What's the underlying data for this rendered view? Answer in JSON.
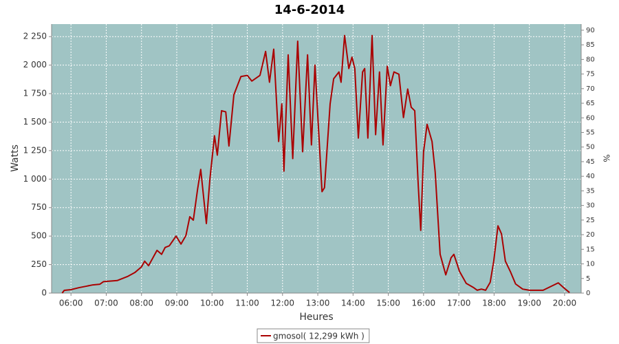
{
  "chart_data": {
    "type": "line",
    "title": "14-6-2014",
    "x_label": "Heures",
    "y_label": "Watts",
    "y2_label": "%",
    "x": [
      5.75,
      5.81,
      6.0,
      6.23,
      6.43,
      6.62,
      6.82,
      6.92,
      7.31,
      7.6,
      7.81,
      8.0,
      8.09,
      8.2,
      8.44,
      8.57,
      8.67,
      8.79,
      8.98,
      9.12,
      9.26,
      9.37,
      9.47,
      9.59,
      9.68,
      9.84,
      9.94,
      10.07,
      10.15,
      10.27,
      10.39,
      10.48,
      10.62,
      10.82,
      11.0,
      11.13,
      11.36,
      11.52,
      11.63,
      11.75,
      11.89,
      11.98,
      12.04,
      12.16,
      12.29,
      12.43,
      12.57,
      12.71,
      12.82,
      12.92,
      13.12,
      13.19,
      13.35,
      13.45,
      13.6,
      13.66,
      13.76,
      13.88,
      13.97,
      14.05,
      14.15,
      14.27,
      14.33,
      14.42,
      14.54,
      14.64,
      14.75,
      14.85,
      14.97,
      15.06,
      15.16,
      15.3,
      15.43,
      15.55,
      15.65,
      15.75,
      15.85,
      15.92,
      16.0,
      16.1,
      16.24,
      16.33,
      16.47,
      16.63,
      16.78,
      16.86,
      17.02,
      17.21,
      17.41,
      17.52,
      17.64,
      17.76,
      17.89,
      17.99,
      18.11,
      18.21,
      18.32,
      18.46,
      18.61,
      18.81,
      19.0,
      19.39,
      19.59,
      19.82,
      20.02,
      20.14
    ],
    "series": [
      {
        "name": "gmosol( 12,299 kWh )",
        "color": "#aa0000",
        "values": [
          0,
          24,
          30,
          48,
          60,
          72,
          78,
          100,
          110,
          145,
          180,
          230,
          280,
          240,
          375,
          340,
          400,
          415,
          500,
          430,
          505,
          670,
          640,
          910,
          1085,
          610,
          1000,
          1380,
          1210,
          1600,
          1590,
          1290,
          1740,
          1900,
          1910,
          1860,
          1910,
          2120,
          1850,
          2140,
          1330,
          1660,
          1070,
          2090,
          1180,
          2210,
          1240,
          2090,
          1300,
          2000,
          890,
          925,
          1660,
          1880,
          1940,
          1850,
          2260,
          1970,
          2070,
          1970,
          1360,
          1940,
          1970,
          1360,
          2260,
          1390,
          1940,
          1300,
          1990,
          1820,
          1940,
          1920,
          1540,
          1790,
          1630,
          1600,
          940,
          550,
          1240,
          1480,
          1330,
          1060,
          340,
          160,
          310,
          340,
          190,
          85,
          50,
          25,
          35,
          25,
          95,
          280,
          590,
          520,
          280,
          190,
          80,
          35,
          25,
          25,
          55,
          90,
          35,
          5
        ]
      }
    ],
    "xlim": [
      5.45,
      20.47
    ],
    "xticks": [
      {
        "value": 6,
        "label": "06:00"
      },
      {
        "value": 7,
        "label": "07:00"
      },
      {
        "value": 8,
        "label": "08:00"
      },
      {
        "value": 9,
        "label": "09:00"
      },
      {
        "value": 10,
        "label": "10:00"
      },
      {
        "value": 11,
        "label": "11:00"
      },
      {
        "value": 12,
        "label": "12:00"
      },
      {
        "value": 13,
        "label": "13:00"
      },
      {
        "value": 14,
        "label": "14:00"
      },
      {
        "value": 15,
        "label": "15:00"
      },
      {
        "value": 16,
        "label": "16:00"
      },
      {
        "value": 17,
        "label": "17:00"
      },
      {
        "value": 18,
        "label": "18:00"
      },
      {
        "value": 19,
        "label": "19:00"
      },
      {
        "value": 20,
        "label": "20:00"
      }
    ],
    "ylim": [
      0,
      2360
    ],
    "yticks": [
      0,
      250,
      500,
      750,
      {
        "value": 1000,
        "label": "1 000"
      },
      {
        "value": 1250,
        "label": "1 250"
      },
      {
        "value": 1500,
        "label": "1 500"
      },
      {
        "value": 1750,
        "label": "1 750"
      },
      {
        "value": 2000,
        "label": "2 000"
      },
      {
        "value": 2250,
        "label": "2 250"
      }
    ],
    "y2lim": [
      0,
      92.1
    ],
    "y2ticks": [
      0,
      5,
      10,
      15,
      20,
      25,
      30,
      35,
      40,
      45,
      50,
      55,
      60,
      65,
      70,
      75,
      80,
      85,
      90
    ],
    "grid": true,
    "legend": "bottom"
  }
}
